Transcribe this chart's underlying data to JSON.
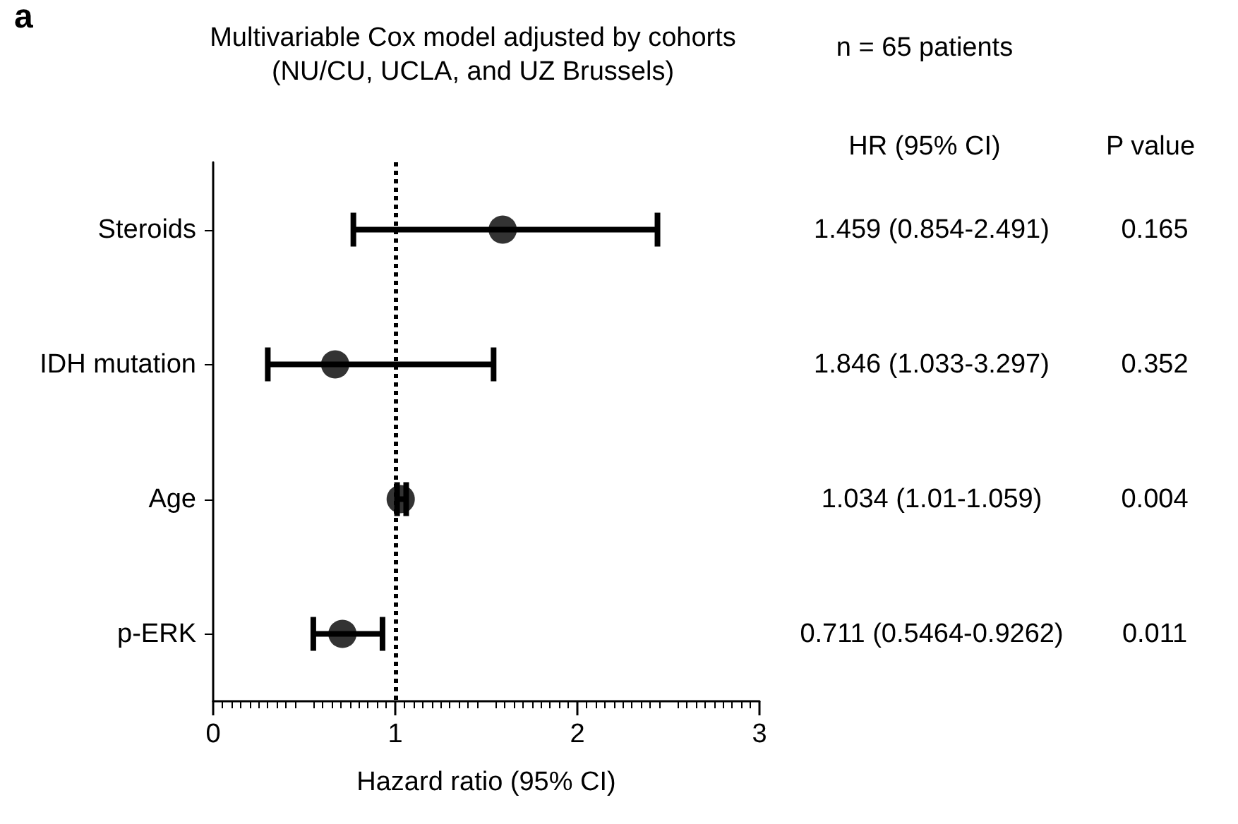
{
  "chart_data": {
    "type": "scatter",
    "orientation": "horizontal",
    "title": "Multivariable Cox model adjusted by cohorts\n(NU/CU, UCLA, and UZ Brussels)",
    "xlabel": "Hazard ratio (95% CI)",
    "categories": [
      "Steroids",
      "IDH mutation",
      "Age",
      "p-ERK"
    ],
    "series": [
      {
        "color": "#000000",
        "values": [
          1.59,
          0.67,
          1.03,
          0.71
        ],
        "errors": [
          [
            0.77,
            2.44
          ],
          [
            0.3,
            1.54
          ],
          [
            1.01,
            1.06
          ],
          [
            0.55,
            0.93
          ]
        ]
      }
    ],
    "xlim": [
      0,
      3
    ],
    "xticks": [
      0,
      1,
      2,
      3
    ],
    "marker": "circle",
    "grid": false,
    "ref_lines": [
      {
        "axis": "x",
        "value": 1,
        "line_style": "dotted",
        "color": "#000000"
      }
    ],
    "annotations": [
      "a",
      "n = 65 patients",
      "HR (95% CI)",
      "P value",
      "1.459 (0.854-2.491)",
      "1.846 (1.033-3.297)",
      "1.034 (1.01-1.059)",
      "0.711 (0.5464-0.9262)",
      "0.165",
      "0.352",
      "0.004",
      "0.011"
    ]
  }
}
